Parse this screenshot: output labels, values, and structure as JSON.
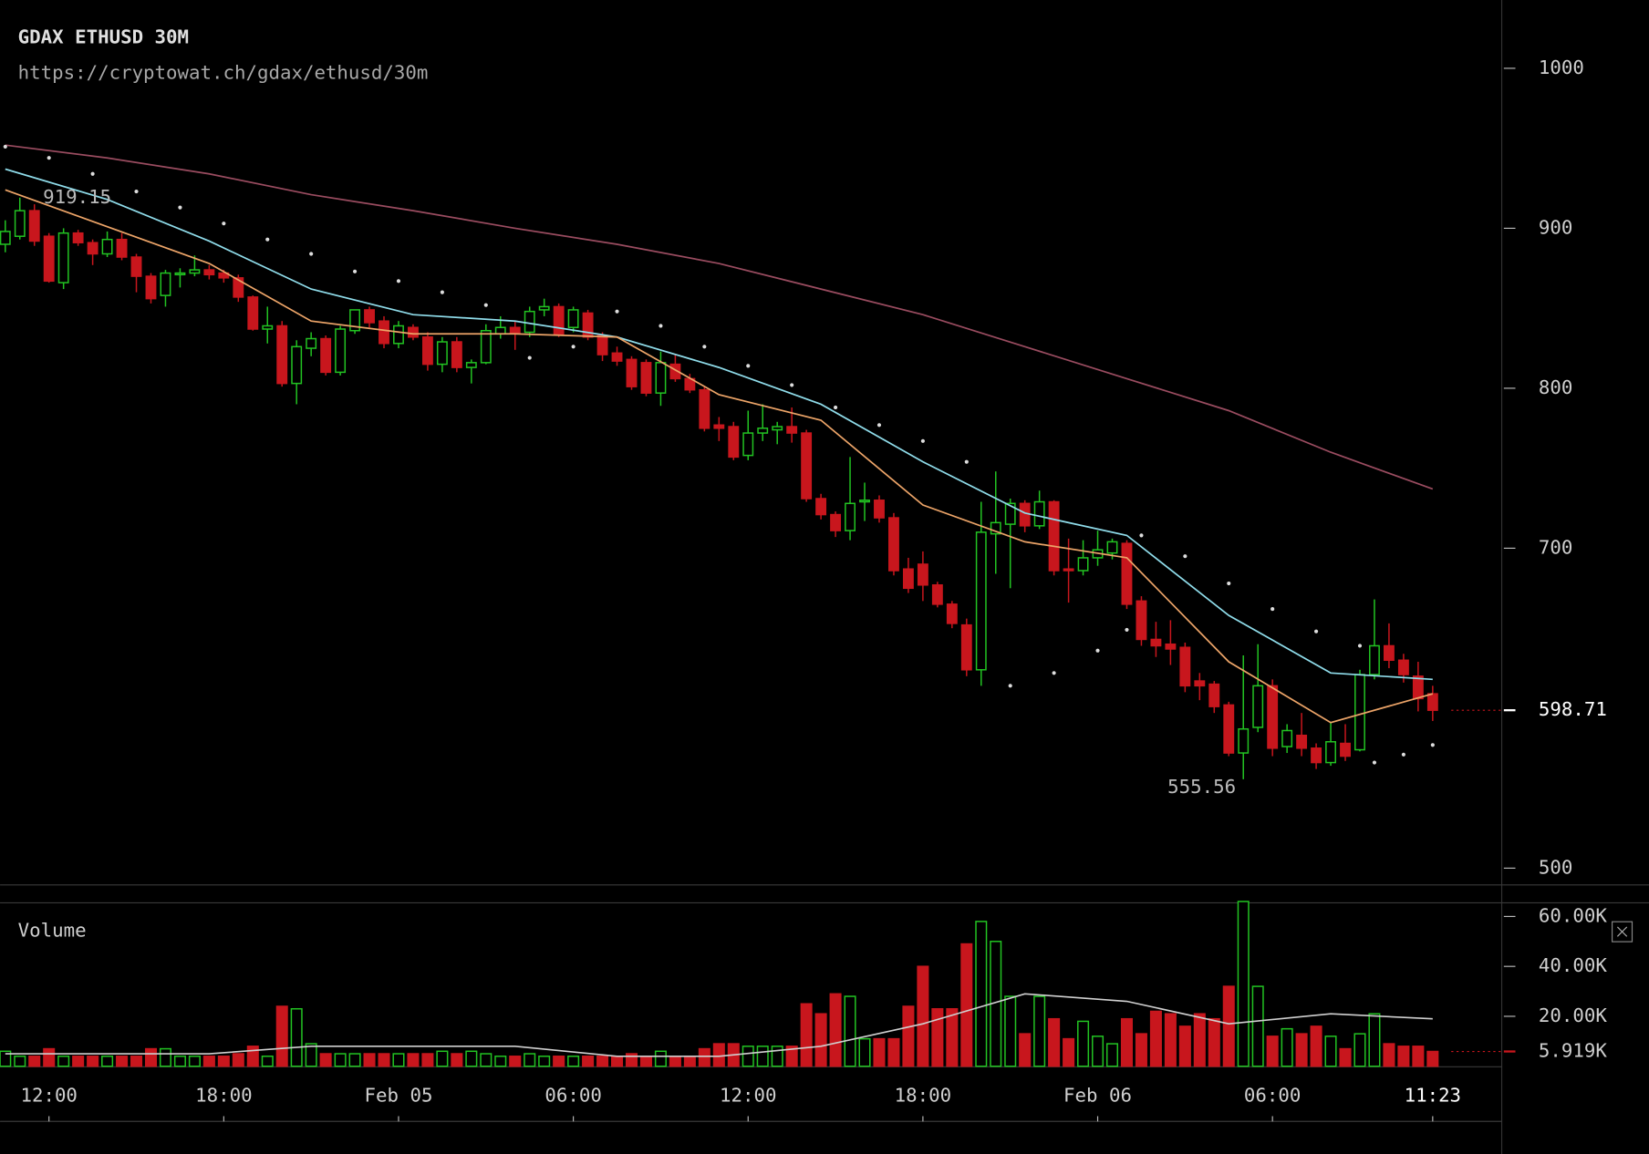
{
  "chart_data": {
    "type": "candlestick",
    "title": "GDAX ETHUSD 30M",
    "subtitle": "https://cryptowat.ch/gdax/ethusd/30m",
    "open": [
      890,
      895,
      911,
      895,
      866,
      897,
      891,
      884,
      893,
      882,
      870,
      858,
      871,
      872,
      874,
      872,
      869,
      857,
      837,
      839,
      803,
      825,
      831,
      810,
      836,
      849,
      842,
      828,
      838,
      832,
      815,
      829,
      813,
      816,
      834,
      838,
      835,
      849,
      851,
      838,
      847,
      833,
      822,
      818,
      816,
      797,
      815,
      806,
      799,
      777,
      776,
      758,
      772,
      774,
      776,
      772,
      731,
      721,
      711,
      729,
      730,
      719,
      687,
      690,
      677,
      665,
      652,
      624,
      709,
      715,
      728,
      714,
      729,
      687,
      686,
      694,
      697,
      703,
      667,
      643,
      640,
      638,
      617,
      615,
      602,
      572,
      588,
      614,
      576,
      583,
      575,
      566,
      578,
      574,
      621,
      639,
      630,
      620,
      609
    ],
    "high": [
      905,
      919.15,
      915,
      897,
      900,
      899,
      893,
      898,
      897,
      884,
      872,
      874,
      875,
      883,
      877,
      874,
      871,
      858,
      851,
      842,
      830,
      835,
      833,
      839,
      849,
      851,
      845,
      842,
      840,
      835,
      832,
      832,
      818,
      840,
      845,
      842,
      851,
      856,
      853,
      851,
      849,
      835,
      826,
      820,
      818,
      823,
      821,
      809,
      801,
      782,
      779,
      786,
      790,
      779,
      788,
      774,
      734,
      723,
      757,
      741,
      733,
      722,
      694,
      698,
      679,
      667,
      656,
      729,
      748,
      731,
      730,
      736,
      730,
      706,
      705,
      711,
      706,
      705,
      670,
      654,
      655,
      641,
      622,
      617,
      604,
      633,
      640,
      618,
      590,
      597,
      578,
      591,
      590,
      624,
      668,
      653,
      634,
      629,
      614
    ],
    "low": [
      885,
      893,
      889,
      866,
      862,
      889,
      877,
      882,
      880,
      860,
      853,
      851,
      863,
      870,
      868,
      866,
      854,
      836,
      828,
      801,
      790,
      820,
      808,
      808,
      834,
      838,
      825,
      825,
      830,
      811,
      810,
      810,
      803,
      815,
      831,
      824,
      832,
      845,
      832,
      835,
      830,
      817,
      814,
      799,
      795,
      789,
      804,
      797,
      773,
      767,
      755,
      755,
      767,
      765,
      766,
      729,
      718,
      707,
      705,
      717,
      716,
      683,
      672,
      667,
      663,
      650,
      620,
      614,
      684,
      675,
      710,
      712,
      683,
      666,
      683,
      689,
      693,
      662,
      639,
      632,
      627,
      610,
      605,
      597,
      570,
      555.56,
      585,
      570,
      572,
      570,
      562,
      564,
      567,
      573,
      618,
      625,
      616,
      598,
      592
    ],
    "close": [
      898,
      911,
      892,
      867,
      897,
      891,
      884,
      893,
      882,
      870,
      856,
      872,
      872,
      874,
      871,
      869,
      857,
      837,
      839,
      803,
      826,
      831,
      810,
      837,
      849,
      841,
      828,
      839,
      832,
      815,
      829,
      813,
      816,
      836,
      838,
      834,
      848,
      851,
      834,
      849,
      832,
      821,
      817,
      801,
      797,
      816,
      806,
      799,
      775,
      775,
      757,
      772,
      775,
      776,
      772,
      731,
      721,
      711,
      728,
      730,
      719,
      686,
      675,
      677,
      665,
      653,
      624,
      710,
      716,
      728,
      714,
      729,
      686,
      686,
      694,
      699,
      704,
      665,
      643,
      639,
      637,
      614,
      614,
      601,
      572,
      587,
      614,
      575,
      586,
      575,
      566,
      579,
      570,
      621,
      639,
      630,
      621,
      606,
      598.71
    ],
    "up_color": "#22c322",
    "down_color": "#c8161d",
    "xlim": [
      -0.36,
      102.74
    ],
    "xticks": [
      {
        "value": 3,
        "label": "12:00"
      },
      {
        "value": 15,
        "label": "18:00"
      },
      {
        "value": 27,
        "label": "Feb 05"
      },
      {
        "value": 39,
        "label": "06:00"
      },
      {
        "value": 51,
        "label": "12:00"
      },
      {
        "value": 63,
        "label": "18:00"
      },
      {
        "value": 75,
        "label": "Feb 06"
      },
      {
        "value": 87,
        "label": "06:00"
      },
      {
        "value": 98,
        "label": "11:23"
      }
    ],
    "ylim": [
      489.5,
      1042.7
    ],
    "yticks": [
      500,
      700,
      800,
      900,
      1000
    ],
    "overlays": [
      {
        "style": "line",
        "color": "#9a4c60",
        "x": [
          0,
          7,
          14,
          21,
          28,
          35,
          42,
          49,
          56,
          63,
          70,
          77,
          84,
          91,
          98
        ],
        "values": [
          952,
          944,
          934,
          921,
          911,
          900,
          890,
          878,
          862,
          846,
          826,
          806,
          786,
          760,
          737
        ]
      },
      {
        "style": "line",
        "color": "#8fdcea",
        "x": [
          0,
          7,
          14,
          21,
          28,
          35,
          42,
          49,
          56,
          63,
          70,
          77,
          84,
          91,
          98
        ],
        "values": [
          937,
          918,
          892,
          862,
          846,
          842,
          832,
          813,
          790,
          754,
          722,
          708,
          658,
          622,
          618
        ]
      },
      {
        "style": "line",
        "color": "#eca468",
        "x": [
          0,
          7,
          14,
          21,
          28,
          35,
          42,
          49,
          56,
          63,
          70,
          77,
          84,
          91,
          98
        ],
        "values": [
          924,
          901,
          878,
          842,
          834,
          834,
          832,
          796,
          780,
          727,
          704,
          694,
          629,
          591,
          609
        ]
      },
      {
        "style": "dots",
        "color": "#dddddd",
        "x": [
          0,
          3,
          6,
          9,
          12,
          15,
          18,
          21,
          24,
          27,
          30,
          33,
          36,
          39,
          42,
          45,
          48,
          51,
          54,
          57,
          60,
          63,
          66,
          69,
          72,
          75,
          77,
          78,
          81,
          84,
          87,
          90,
          93,
          94,
          96,
          98
        ],
        "values": [
          951,
          944,
          934,
          923,
          913,
          903,
          893,
          884,
          873,
          867,
          860,
          852,
          819,
          826,
          848,
          839,
          826,
          814,
          802,
          788,
          777,
          767,
          754,
          614,
          622,
          636,
          649,
          708,
          695,
          678,
          662,
          648,
          639,
          566,
          571,
          577
        ]
      }
    ],
    "volume": {
      "title": "Volume",
      "values": [
        6000,
        4000,
        4000,
        7000,
        4000,
        4000,
        4000,
        4000,
        4000,
        4000,
        7000,
        7000,
        4000,
        4000,
        4000,
        4000,
        5000,
        8000,
        4000,
        24000,
        23000,
        9000,
        5000,
        5000,
        5000,
        5000,
        5000,
        5000,
        5000,
        5000,
        6000,
        5000,
        6000,
        5000,
        4000,
        4000,
        5000,
        4000,
        4000,
        4000,
        4000,
        4000,
        4000,
        5000,
        4000,
        6000,
        4000,
        4000,
        7000,
        9000,
        9000,
        8000,
        8000,
        8000,
        8000,
        25000,
        21000,
        29000,
        28000,
        11000,
        11000,
        11000,
        24000,
        40000,
        23000,
        23000,
        49000,
        58000,
        50000,
        28000,
        13000,
        28000,
        19000,
        11000,
        18000,
        12000,
        9000,
        19000,
        13000,
        22000,
        21000,
        16000,
        21000,
        19000,
        32000,
        66000,
        32000,
        12000,
        15000,
        13000,
        16000,
        12000,
        7000,
        13000,
        21000,
        9000,
        8000,
        8000,
        5919
      ],
      "ylim": [
        0,
        65470
      ],
      "yticks": [
        {
          "value": 20000,
          "label": "20.00K"
        },
        {
          "value": 40000,
          "label": "40.00K"
        },
        {
          "value": 60000,
          "label": "60.00K"
        }
      ],
      "last": {
        "value": 5919,
        "label": "5.919K"
      },
      "average": {
        "color": "#d0d0d0",
        "x": [
          0,
          7,
          14,
          21,
          28,
          35,
          42,
          49,
          56,
          63,
          70,
          77,
          84,
          91,
          98
        ],
        "values": [
          5000,
          5000,
          5000,
          8000,
          8000,
          8000,
          4000,
          4000,
          8000,
          17000,
          29000,
          26000,
          17000,
          21000,
          19000
        ]
      }
    }
  }
}
